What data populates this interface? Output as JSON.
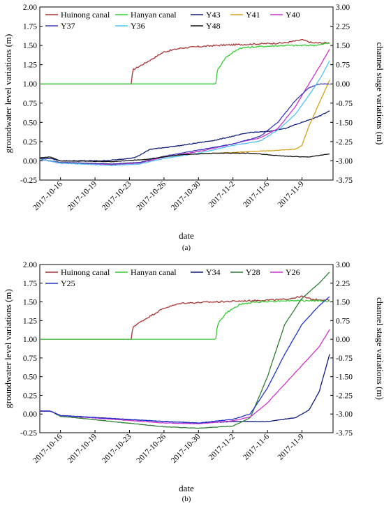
{
  "chart_data": [
    {
      "type": "line",
      "panel_label": "(a)",
      "xlabel": "date",
      "ylabel": "groundwater level variations (m)",
      "y2label": "channel stage variations (m)",
      "x_ticks": [
        "2017-10-16",
        "2017-10-19",
        "2017-10-23",
        "2017-10-26",
        "2017-10-30",
        "2017-11-2",
        "2017-11-6",
        "2017-11-9"
      ],
      "x_range": [
        -0.6,
        7.9
      ],
      "ylim": [
        -0.25,
        2.0
      ],
      "y_ticks": [
        "-0.25",
        "0.00",
        "0.25",
        "0.50",
        "0.75",
        "1.00",
        "1.25",
        "1.50",
        "1.75",
        "2.00"
      ],
      "y2lim": [
        -3.75,
        3.0
      ],
      "y2_ticks": [
        "-3.75",
        "-3.00",
        "-2.25",
        "-1.50",
        "-0.75",
        "0.00",
        "0.75",
        "1.50",
        "2.25",
        "3.00"
      ],
      "legend_rows": [
        [
          "Huinong canal",
          "Hanyan canal",
          "Y43",
          "Y41",
          "Y40"
        ],
        [
          "Y37",
          "Y36",
          "Y48"
        ]
      ],
      "series": [
        {
          "name": "Huinong canal",
          "axis": "right",
          "color": "#a83232",
          "noise": 0.012,
          "points": [
            [
              -0.6,
              0.0
            ],
            [
              2.05,
              0.0
            ],
            [
              2.1,
              0.55
            ],
            [
              2.5,
              0.85
            ],
            [
              3.0,
              1.25
            ],
            [
              3.5,
              1.4
            ],
            [
              4.5,
              1.5
            ],
            [
              5.5,
              1.55
            ],
            [
              6.5,
              1.6
            ],
            [
              7.0,
              1.72
            ],
            [
              7.3,
              1.6
            ],
            [
              7.8,
              1.6
            ]
          ]
        },
        {
          "name": "Hanyan canal",
          "axis": "right",
          "color": "#33cc33",
          "noise": 0.012,
          "points": [
            [
              -0.6,
              0.0
            ],
            [
              4.5,
              0.0
            ],
            [
              4.55,
              0.55
            ],
            [
              4.8,
              1.05
            ],
            [
              5.2,
              1.4
            ],
            [
              5.7,
              1.45
            ],
            [
              6.5,
              1.5
            ],
            [
              7.0,
              1.5
            ],
            [
              7.5,
              1.52
            ],
            [
              7.8,
              1.6
            ]
          ]
        },
        {
          "name": "Y43",
          "axis": "left",
          "color": "#0d1a7a",
          "noise": 0.006,
          "points": [
            [
              -0.6,
              0.03
            ],
            [
              -0.3,
              0.03
            ],
            [
              0.0,
              0.0
            ],
            [
              1.2,
              0.0
            ],
            [
              1.8,
              0.02
            ],
            [
              2.2,
              0.05
            ],
            [
              2.6,
              0.15
            ],
            [
              3.5,
              0.2
            ],
            [
              4.5,
              0.27
            ],
            [
              5.5,
              0.37
            ],
            [
              6.0,
              0.38
            ],
            [
              6.5,
              0.42
            ],
            [
              7.0,
              0.5
            ],
            [
              7.5,
              0.58
            ],
            [
              7.8,
              0.65
            ]
          ]
        },
        {
          "name": "Y41",
          "axis": "left",
          "color": "#d4a017",
          "noise": 0.005,
          "points": [
            [
              -0.6,
              0.02
            ],
            [
              0.0,
              -0.02
            ],
            [
              1.5,
              -0.04
            ],
            [
              2.3,
              -0.02
            ],
            [
              3.0,
              0.06
            ],
            [
              4.0,
              0.09
            ],
            [
              5.0,
              0.11
            ],
            [
              6.0,
              0.13
            ],
            [
              6.8,
              0.15
            ],
            [
              7.0,
              0.2
            ],
            [
              7.2,
              0.45
            ],
            [
              7.5,
              0.75
            ],
            [
              7.8,
              1.05
            ]
          ]
        },
        {
          "name": "Y40",
          "axis": "left",
          "color": "#cc33cc",
          "noise": 0.005,
          "points": [
            [
              -0.6,
              0.02
            ],
            [
              0.0,
              -0.03
            ],
            [
              1.5,
              -0.05
            ],
            [
              2.3,
              -0.03
            ],
            [
              3.0,
              0.05
            ],
            [
              4.0,
              0.12
            ],
            [
              5.0,
              0.22
            ],
            [
              5.8,
              0.3
            ],
            [
              6.3,
              0.42
            ],
            [
              6.8,
              0.7
            ],
            [
              7.2,
              1.0
            ],
            [
              7.5,
              1.22
            ],
            [
              7.8,
              1.45
            ]
          ]
        },
        {
          "name": "Y37",
          "axis": "left",
          "color": "#3d3dbb",
          "noise": 0.005,
          "points": [
            [
              -0.6,
              0.02
            ],
            [
              0.0,
              -0.02
            ],
            [
              1.5,
              -0.04
            ],
            [
              2.3,
              -0.02
            ],
            [
              3.0,
              0.06
            ],
            [
              4.0,
              0.14
            ],
            [
              5.0,
              0.22
            ],
            [
              5.8,
              0.32
            ],
            [
              6.3,
              0.5
            ],
            [
              6.8,
              0.78
            ],
            [
              7.2,
              0.95
            ],
            [
              7.5,
              1.0
            ],
            [
              7.8,
              1.0
            ]
          ]
        },
        {
          "name": "Y36",
          "axis": "left",
          "color": "#4fc3f7",
          "noise": 0.005,
          "points": [
            [
              -0.6,
              0.02
            ],
            [
              0.0,
              -0.03
            ],
            [
              1.5,
              -0.06
            ],
            [
              2.3,
              -0.04
            ],
            [
              3.0,
              0.03
            ],
            [
              4.0,
              0.1
            ],
            [
              5.0,
              0.2
            ],
            [
              5.8,
              0.26
            ],
            [
              6.3,
              0.4
            ],
            [
              6.8,
              0.6
            ],
            [
              7.2,
              0.85
            ],
            [
              7.5,
              1.05
            ],
            [
              7.8,
              1.3
            ]
          ]
        },
        {
          "name": "Y48",
          "axis": "left",
          "color": "#111111",
          "noise": 0.004,
          "points": [
            [
              -0.6,
              0.04
            ],
            [
              -0.3,
              0.05
            ],
            [
              0.0,
              0.0
            ],
            [
              1.5,
              -0.01
            ],
            [
              2.5,
              0.02
            ],
            [
              3.5,
              0.08
            ],
            [
              4.5,
              0.1
            ],
            [
              5.5,
              0.1
            ],
            [
              6.5,
              0.06
            ],
            [
              7.2,
              0.05
            ],
            [
              7.8,
              0.09
            ]
          ]
        }
      ]
    },
    {
      "type": "line",
      "panel_label": "(b)",
      "xlabel": "date",
      "ylabel": "groundwater level variations (m)",
      "y2label": "channel stage variations (m)",
      "x_ticks": [
        "2017-10-16",
        "2017-10-19",
        "2017-10-23",
        "2017-10-26",
        "2017-10-30",
        "2017-11-2",
        "2017-11-6",
        "2017-11-9"
      ],
      "x_range": [
        -0.6,
        7.9
      ],
      "ylim": [
        -0.25,
        2.0
      ],
      "y_ticks": [
        "-0.25",
        "0.00",
        "0.25",
        "0.50",
        "0.75",
        "1.00",
        "1.25",
        "1.50",
        "1.75",
        "2.00"
      ],
      "y2lim": [
        -3.75,
        3.0
      ],
      "y2_ticks": [
        "-3.75",
        "-3.00",
        "-2.25",
        "-1.50",
        "-0.75",
        "0.00",
        "0.75",
        "1.50",
        "2.25",
        "3.00"
      ],
      "legend_rows": [
        [
          "Huinong canal",
          "Hanyan canal",
          "Y34",
          "Y28",
          "Y26"
        ],
        [
          "Y25"
        ]
      ],
      "series": [
        {
          "name": "Huinong canal",
          "axis": "right",
          "color": "#a83232",
          "noise": 0.012,
          "points": [
            [
              -0.6,
              0.0
            ],
            [
              2.05,
              0.0
            ],
            [
              2.1,
              0.5
            ],
            [
              2.5,
              0.85
            ],
            [
              3.0,
              1.25
            ],
            [
              3.5,
              1.45
            ],
            [
              4.5,
              1.5
            ],
            [
              5.5,
              1.55
            ],
            [
              6.5,
              1.6
            ],
            [
              7.0,
              1.72
            ],
            [
              7.3,
              1.6
            ],
            [
              7.8,
              1.58
            ]
          ]
        },
        {
          "name": "Hanyan canal",
          "axis": "right",
          "color": "#33cc33",
          "noise": 0.012,
          "points": [
            [
              -0.6,
              0.0
            ],
            [
              4.5,
              0.0
            ],
            [
              4.55,
              0.6
            ],
            [
              4.8,
              1.05
            ],
            [
              5.2,
              1.4
            ],
            [
              5.7,
              1.5
            ],
            [
              6.5,
              1.55
            ],
            [
              7.0,
              1.55
            ],
            [
              7.5,
              1.55
            ],
            [
              7.8,
              1.52
            ]
          ]
        },
        {
          "name": "Y34",
          "axis": "left",
          "color": "#0d1a7a",
          "noise": 0.004,
          "points": [
            [
              -0.6,
              0.04
            ],
            [
              -0.3,
              0.04
            ],
            [
              0.0,
              -0.02
            ],
            [
              1.5,
              -0.06
            ],
            [
              3.0,
              -0.1
            ],
            [
              4.0,
              -0.12
            ],
            [
              5.0,
              -0.1
            ],
            [
              6.0,
              -0.1
            ],
            [
              6.8,
              -0.05
            ],
            [
              7.2,
              0.05
            ],
            [
              7.5,
              0.3
            ],
            [
              7.8,
              0.8
            ]
          ]
        },
        {
          "name": "Y28",
          "axis": "left",
          "color": "#2e7d32",
          "noise": 0.004,
          "points": [
            [
              -0.6,
              0.04
            ],
            [
              -0.3,
              0.04
            ],
            [
              0.0,
              -0.03
            ],
            [
              1.5,
              -0.1
            ],
            [
              3.0,
              -0.17
            ],
            [
              4.0,
              -0.19
            ],
            [
              5.0,
              -0.16
            ],
            [
              5.5,
              -0.05
            ],
            [
              6.0,
              0.5
            ],
            [
              6.5,
              1.2
            ],
            [
              7.0,
              1.55
            ],
            [
              7.5,
              1.75
            ],
            [
              7.8,
              1.9
            ]
          ]
        },
        {
          "name": "Y26",
          "axis": "left",
          "color": "#cc33cc",
          "noise": 0.004,
          "points": [
            [
              -0.6,
              0.04
            ],
            [
              -0.3,
              0.04
            ],
            [
              0.0,
              -0.02
            ],
            [
              1.5,
              -0.07
            ],
            [
              3.0,
              -0.12
            ],
            [
              4.0,
              -0.13
            ],
            [
              5.0,
              -0.09
            ],
            [
              5.5,
              -0.04
            ],
            [
              6.0,
              0.15
            ],
            [
              6.5,
              0.4
            ],
            [
              7.0,
              0.65
            ],
            [
              7.5,
              0.9
            ],
            [
              7.8,
              1.13
            ]
          ]
        },
        {
          "name": "Y25",
          "axis": "left",
          "color": "#2233cc",
          "noise": 0.004,
          "points": [
            [
              -0.6,
              0.04
            ],
            [
              -0.3,
              0.04
            ],
            [
              0.0,
              -0.02
            ],
            [
              1.5,
              -0.06
            ],
            [
              3.0,
              -0.1
            ],
            [
              4.0,
              -0.12
            ],
            [
              5.0,
              -0.07
            ],
            [
              5.5,
              0.0
            ],
            [
              6.0,
              0.35
            ],
            [
              6.5,
              0.8
            ],
            [
              7.0,
              1.2
            ],
            [
              7.5,
              1.45
            ],
            [
              7.8,
              1.57
            ]
          ]
        }
      ]
    }
  ]
}
